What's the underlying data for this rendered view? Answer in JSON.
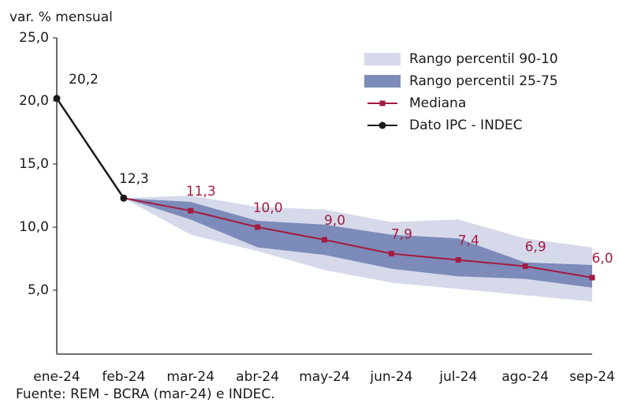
{
  "chart_data": {
    "type": "line",
    "y_label": "var. % mensual",
    "source": "Fuente: REM - BCRA (mar-24) e INDEC.",
    "categories": [
      "ene-24",
      "feb-24",
      "mar-24",
      "abr-24",
      "may-24",
      "jun-24",
      "jul-24",
      "ago-24",
      "sep-24"
    ],
    "ylim": [
      0,
      25
    ],
    "yticks": [
      {
        "value": 5,
        "label": "5,0"
      },
      {
        "value": 10,
        "label": "10,0"
      },
      {
        "value": 15,
        "label": "15,0"
      },
      {
        "value": 20,
        "label": "20,0"
      },
      {
        "value": 25,
        "label": "25,0"
      }
    ],
    "legend": "top-right",
    "bands": [
      {
        "name": "Rango percentil 90-10",
        "color": "#d6d9ea",
        "upper": [
          null,
          12.3,
          12.5,
          11.6,
          11.4,
          10.4,
          10.6,
          9.1,
          8.4
        ],
        "lower": [
          null,
          12.3,
          9.4,
          8.1,
          6.6,
          5.6,
          5.1,
          4.6,
          4.1
        ]
      },
      {
        "name": "Rango percentil 25-75",
        "color": "#7d8bba",
        "upper": [
          null,
          12.3,
          12.0,
          10.5,
          10.2,
          9.4,
          9.1,
          7.2,
          7.0
        ],
        "lower": [
          null,
          12.3,
          10.6,
          8.4,
          7.8,
          6.7,
          6.1,
          5.9,
          5.2
        ]
      }
    ],
    "series": [
      {
        "name": "Mediana",
        "color": "#a31b40",
        "marker": "square",
        "values": [
          null,
          12.3,
          11.3,
          10.0,
          9.0,
          7.9,
          7.4,
          6.9,
          6.0
        ],
        "value_labels": [
          null,
          null,
          "11,3",
          "10,0",
          "9,0",
          "7,9",
          "7,4",
          "6,9",
          "6,0"
        ]
      },
      {
        "name": "Dato IPC - INDEC",
        "color": "#1a1a1a",
        "marker": "circle",
        "values": [
          20.2,
          12.3,
          null,
          null,
          null,
          null,
          null,
          null,
          null
        ],
        "value_labels": [
          "20,2",
          "12,3",
          null,
          null,
          null,
          null,
          null,
          null,
          null
        ]
      }
    ]
  }
}
